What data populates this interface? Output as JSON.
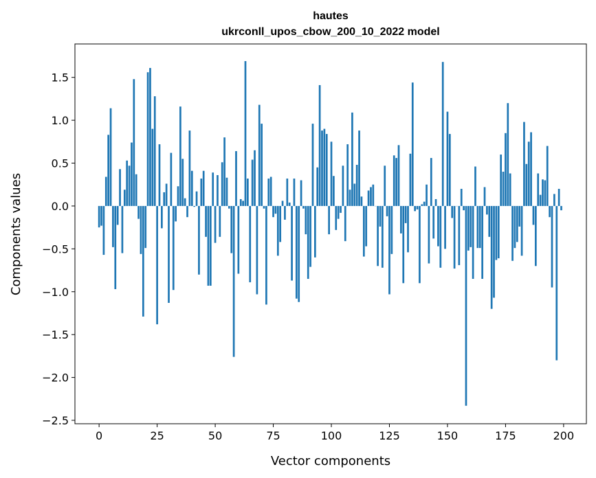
{
  "chart_data": {
    "type": "bar",
    "title": "hautes",
    "subtitle": "ukrconll_upos_cbow_200_10_2022 model",
    "xlabel": "Vector components",
    "ylabel": "Components values",
    "xlim": [
      -10.4,
      209.8
    ],
    "ylim": [
      -2.54,
      1.89
    ],
    "xticks": [
      0,
      25,
      50,
      75,
      100,
      125,
      150,
      175,
      200
    ],
    "xtick_labels": [
      "0",
      "25",
      "50",
      "75",
      "100",
      "125",
      "150",
      "175",
      "200"
    ],
    "yticks": [
      1.5,
      1.0,
      0.5,
      0.0,
      -0.5,
      -1.0,
      -1.5,
      -2.0,
      -2.5
    ],
    "ytick_labels": [
      "1.5",
      "1.0",
      "0.5",
      "0.0",
      "−0.5",
      "−1.0",
      "−1.5",
      "−2.0",
      "−2.5"
    ],
    "grid": false,
    "color": "#1f77b4",
    "values": [
      -0.25,
      -0.23,
      -0.57,
      0.34,
      0.83,
      1.14,
      -0.48,
      -0.97,
      -0.22,
      0.43,
      -0.55,
      0.19,
      0.53,
      0.47,
      0.74,
      1.48,
      0.37,
      -0.15,
      -0.56,
      -1.29,
      -0.49,
      1.56,
      1.61,
      0.9,
      1.28,
      -1.38,
      0.72,
      -0.26,
      0.16,
      0.26,
      -1.13,
      0.62,
      -0.98,
      -0.18,
      0.23,
      1.16,
      0.55,
      0.09,
      -0.13,
      0.88,
      0.41,
      -0.01,
      0.17,
      -0.8,
      0.32,
      0.41,
      -0.36,
      -0.93,
      -0.93,
      0.39,
      -0.43,
      0.36,
      -0.36,
      0.51,
      0.8,
      0.33,
      -0.03,
      -0.55,
      -1.76,
      0.64,
      -0.79,
      0.08,
      0.06,
      1.69,
      0.32,
      -0.89,
      0.54,
      0.65,
      -1.03,
      1.18,
      0.96,
      -0.03,
      -1.15,
      0.32,
      0.34,
      -0.13,
      -0.09,
      -0.58,
      -0.42,
      0.06,
      -0.16,
      0.32,
      0.04,
      -0.87,
      0.32,
      -1.08,
      -1.12,
      0.3,
      -0.03,
      -0.33,
      -0.85,
      -0.71,
      0.96,
      -0.6,
      0.45,
      1.41,
      0.88,
      0.9,
      0.84,
      -0.33,
      0.75,
      0.35,
      -0.28,
      -0.15,
      -0.08,
      0.47,
      -0.41,
      0.72,
      0.19,
      1.09,
      0.26,
      0.48,
      0.88,
      0.11,
      -0.59,
      -0.47,
      0.18,
      0.22,
      0.25,
      0.0,
      -0.7,
      -0.24,
      -0.72,
      0.47,
      -0.12,
      -1.03,
      -0.56,
      0.59,
      0.56,
      0.71,
      -0.32,
      -0.9,
      -0.2,
      -0.54,
      0.61,
      1.44,
      -0.06,
      -0.04,
      -0.9,
      0.02,
      0.05,
      0.25,
      -0.67,
      0.56,
      -0.38,
      0.08,
      -0.47,
      -0.72,
      1.68,
      -0.5,
      1.1,
      0.84,
      -0.14,
      -0.73,
      0.0,
      -0.69,
      0.2,
      -0.05,
      -2.33,
      -0.52,
      -0.48,
      -0.85,
      0.46,
      -0.49,
      -0.49,
      -0.85,
      0.22,
      -0.1,
      -0.36,
      -1.2,
      -1.07,
      -0.63,
      -0.61,
      0.6,
      0.4,
      0.85,
      1.2,
      0.38,
      -0.64,
      -0.49,
      -0.42,
      -0.24,
      -0.58,
      0.98,
      0.49,
      0.75,
      0.86,
      -0.22,
      -0.7,
      0.38,
      0.13,
      0.31,
      0.3,
      0.7,
      -0.13,
      -0.95,
      0.14,
      -1.8,
      0.2,
      -0.05
    ]
  }
}
